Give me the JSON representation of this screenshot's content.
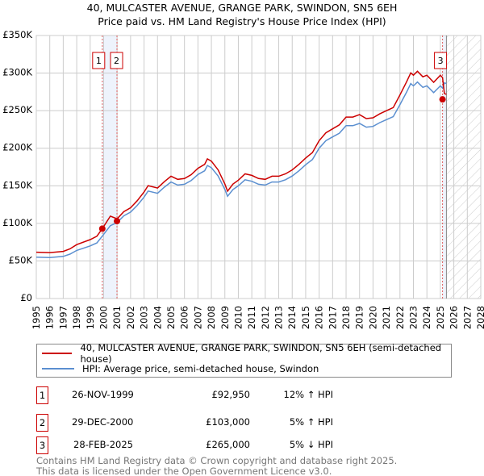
{
  "title": "40, MULCASTER AVENUE, GRANGE PARK, SWINDON, SN5 6EH",
  "subtitle": "Price paid vs. HM Land Registry's House Price Index (HPI)",
  "legend": {
    "property": "40, MULCASTER AVENUE, GRANGE PARK, SWINDON, SN5 6EH (semi-detached house)",
    "hpi": "HPI: Average price, semi-detached house, Swindon"
  },
  "sales": [
    {
      "num": "1",
      "date": "26-NOV-1999",
      "price": "£92,950",
      "hpi": "12% ↑ HPI"
    },
    {
      "num": "2",
      "date": "29-DEC-2000",
      "price": "£103,000",
      "hpi": "5% ↑ HPI"
    },
    {
      "num": "3",
      "date": "28-FEB-2025",
      "price": "£265,000",
      "hpi": "5% ↓ HPI"
    }
  ],
  "footer": {
    "line1": "Contains HM Land Registry data © Crown copyright and database right 2025.",
    "line2": "This data is licensed under the Open Government Licence v3.0."
  },
  "chart_data": {
    "type": "line",
    "xlim": [
      1995,
      2028
    ],
    "ylim": [
      0,
      350000
    ],
    "yticks": [
      {
        "v": 0,
        "label": "£0"
      },
      {
        "v": 50000,
        "label": "£50K"
      },
      {
        "v": 100000,
        "label": "£100K"
      },
      {
        "v": 150000,
        "label": "£150K"
      },
      {
        "v": 200000,
        "label": "£200K"
      },
      {
        "v": 250000,
        "label": "£250K"
      },
      {
        "v": 300000,
        "label": "£300K"
      },
      {
        "v": 350000,
        "label": "£350K"
      }
    ],
    "xticks": [
      "1995",
      "1996",
      "1997",
      "1998",
      "1999",
      "2000",
      "2001",
      "2002",
      "2003",
      "2004",
      "2005",
      "2006",
      "2007",
      "2008",
      "2009",
      "2010",
      "2011",
      "2012",
      "2013",
      "2014",
      "2015",
      "2016",
      "2017",
      "2018",
      "2019",
      "2020",
      "2021",
      "2022",
      "2023",
      "2024",
      "2025",
      "2026",
      "2027",
      "2028"
    ],
    "forecast_start": 2025.45,
    "colors": {
      "property": "#cc0000",
      "hpi": "#5b8fd0",
      "band": "#eef3fc"
    },
    "sale_points": [
      {
        "x": 1999.9,
        "y": 92950
      },
      {
        "x": 2000.99,
        "y": 103000
      },
      {
        "x": 2025.16,
        "y": 265000
      }
    ],
    "property_ratio_segments": [
      {
        "until": 1999.9,
        "ratio": 1.12
      },
      {
        "until": 2000.99,
        "ratio": 1.13
      },
      {
        "until": 2025.16,
        "ratio": 1.05
      },
      {
        "until": 2026,
        "ratio": 0.95
      }
    ],
    "hpi": [
      [
        1995,
        55000
      ],
      [
        1996,
        54500
      ],
      [
        1997,
        56000
      ],
      [
        1997.5,
        59000
      ],
      [
        1998,
        64000
      ],
      [
        1999,
        70000
      ],
      [
        1999.5,
        74000
      ],
      [
        1999.9,
        83000
      ],
      [
        2000.5,
        97000
      ],
      [
        2001,
        101000
      ],
      [
        2001.5,
        110000
      ],
      [
        2002,
        115000
      ],
      [
        2002.5,
        124000
      ],
      [
        2003,
        135000
      ],
      [
        2003.3,
        143000
      ],
      [
        2004,
        140000
      ],
      [
        2004.5,
        148000
      ],
      [
        2005,
        155000
      ],
      [
        2005.5,
        151000
      ],
      [
        2006,
        152000
      ],
      [
        2006.5,
        157000
      ],
      [
        2007,
        165000
      ],
      [
        2007.5,
        170000
      ],
      [
        2007.7,
        177000
      ],
      [
        2008,
        174000
      ],
      [
        2008.5,
        163000
      ],
      [
        2009,
        145000
      ],
      [
        2009.2,
        136000
      ],
      [
        2009.6,
        145000
      ],
      [
        2010,
        150000
      ],
      [
        2010.5,
        158000
      ],
      [
        2011,
        156000
      ],
      [
        2011.5,
        152000
      ],
      [
        2012,
        151000
      ],
      [
        2012.5,
        155000
      ],
      [
        2013,
        155000
      ],
      [
        2013.5,
        158000
      ],
      [
        2014,
        163000
      ],
      [
        2014.5,
        170000
      ],
      [
        2015,
        178000
      ],
      [
        2015.5,
        185000
      ],
      [
        2016,
        200000
      ],
      [
        2016.5,
        210000
      ],
      [
        2017,
        215000
      ],
      [
        2017.5,
        220000
      ],
      [
        2018,
        230000
      ],
      [
        2018.5,
        230000
      ],
      [
        2019,
        233000
      ],
      [
        2019.5,
        228000
      ],
      [
        2020,
        229000
      ],
      [
        2020.5,
        234000
      ],
      [
        2021,
        238000
      ],
      [
        2021.5,
        242000
      ],
      [
        2022,
        258000
      ],
      [
        2022.5,
        275000
      ],
      [
        2022.8,
        286000
      ],
      [
        2023,
        283000
      ],
      [
        2023.3,
        288000
      ],
      [
        2023.7,
        281000
      ],
      [
        2024,
        283000
      ],
      [
        2024.5,
        274000
      ],
      [
        2025,
        283000
      ],
      [
        2025.16,
        280000
      ],
      [
        2025.3,
        287000
      ],
      [
        2025.45,
        286000
      ]
    ]
  }
}
